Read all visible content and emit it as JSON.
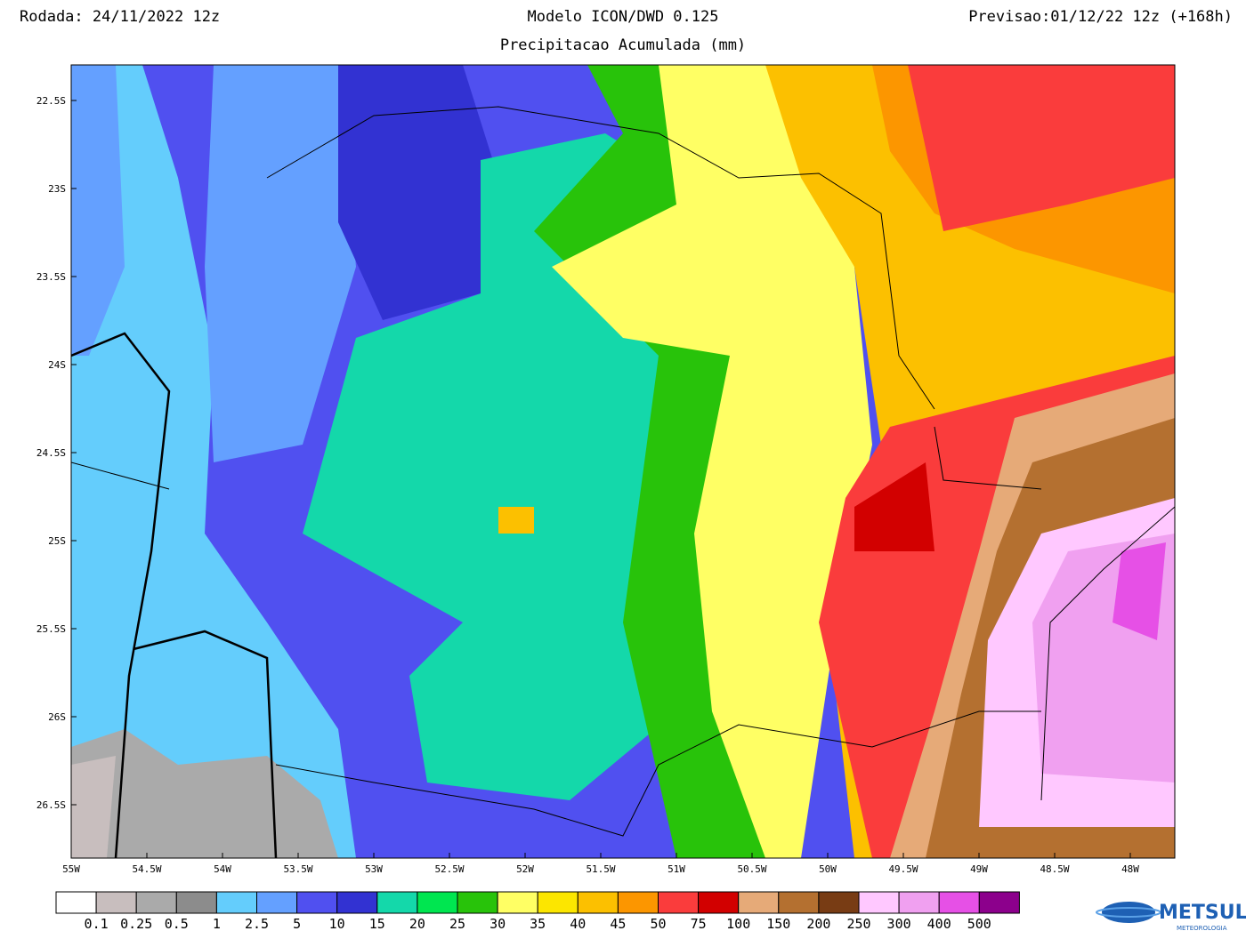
{
  "header": {
    "run": "Rodada: 24/11/2022 12z",
    "model": "Modelo ICON/DWD 0.125",
    "forecast": "Previsao:01/12/22 12z (+168h)",
    "subtitle": "Precipitacao Acumulada (mm)"
  },
  "map": {
    "lat_labels": [
      "22.5S",
      "23S",
      "23.5S",
      "24S",
      "24.5S",
      "25S",
      "25.5S",
      "26S",
      "26.5S"
    ],
    "lon_labels": [
      "55W",
      "54.5W",
      "54W",
      "53.5W",
      "53W",
      "52.5W",
      "52W",
      "51.5W",
      "51W",
      "50.5W",
      "50W",
      "49.5W",
      "49W",
      "48.5W",
      "48W"
    ]
  },
  "colorbar": {
    "levels": [
      0.1,
      0.25,
      0.5,
      1,
      2.5,
      5,
      10,
      15,
      20,
      25,
      30,
      35,
      40,
      45,
      50,
      75,
      100,
      150,
      200,
      250,
      300,
      400,
      500
    ],
    "colors": [
      "#ffffff",
      "#c8bebe",
      "#aaaaaa",
      "#8c8c8c",
      "#64cdfc",
      "#64a0ff",
      "#5050f0",
      "#3232d2",
      "#14d8aa",
      "#00e650",
      "#28c30a",
      "#ffff64",
      "#fce600",
      "#fcc000",
      "#fc9600",
      "#fa3c3c",
      "#d20000",
      "#e6aa78",
      "#b47030",
      "#783c14",
      "#ffc8ff",
      "#f0a0f0",
      "#e650e6",
      "#8c008c"
    ]
  },
  "logo": {
    "name": "METSUL",
    "tagline": "METEOROLOGIA"
  }
}
